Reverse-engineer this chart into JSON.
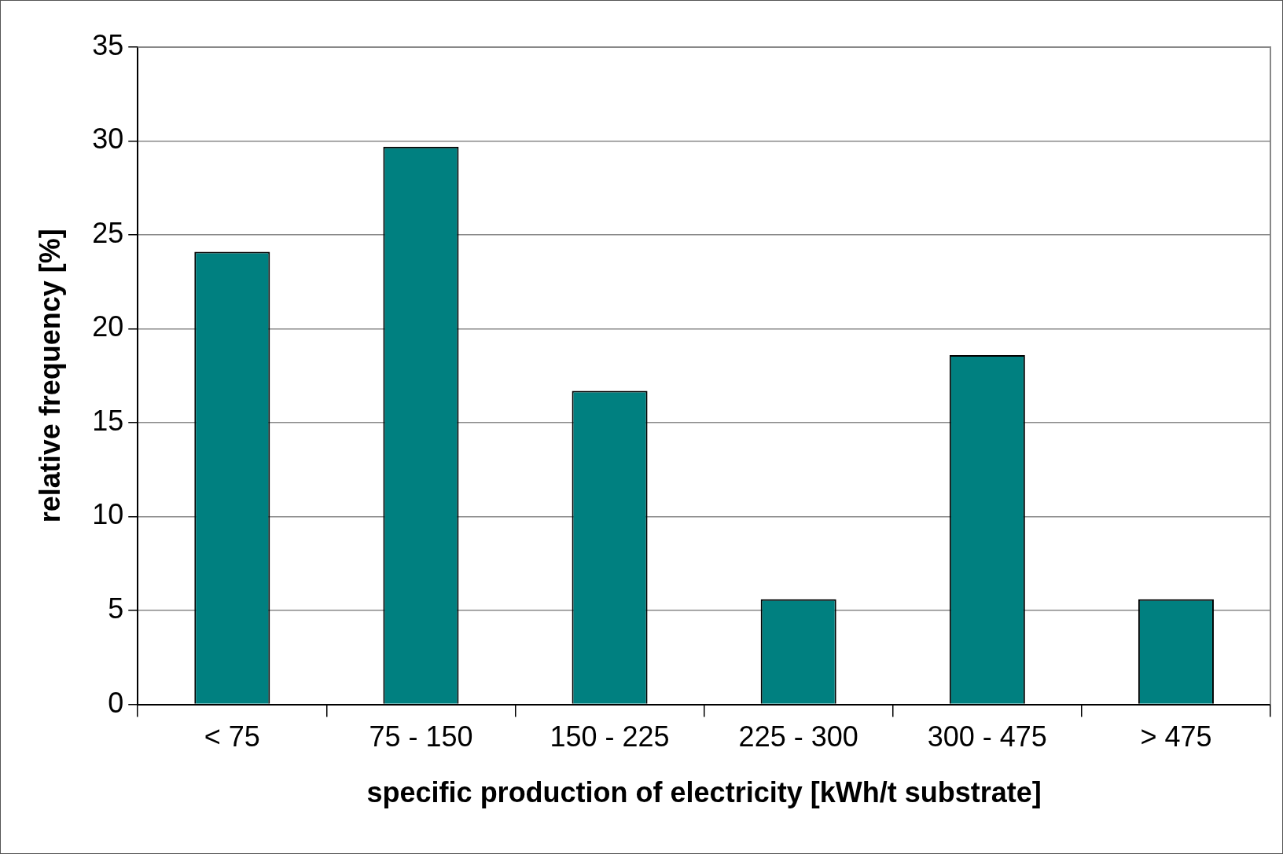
{
  "chart_data": {
    "type": "bar",
    "xlabel": "specific production of electricity [kWh/t substrate]",
    "ylabel": "relative frequency [%]",
    "categories": [
      "< 75",
      "75 - 150",
      "150 - 225",
      "225 - 300",
      "300 - 475",
      "> 475"
    ],
    "values": [
      24.1,
      29.7,
      16.7,
      5.6,
      18.6,
      5.6
    ],
    "color": "#008080",
    "ylim": [
      0,
      35
    ],
    "yticks": [
      0,
      5,
      10,
      15,
      20,
      25,
      30,
      35
    ],
    "grid": "y",
    "legend": false
  }
}
